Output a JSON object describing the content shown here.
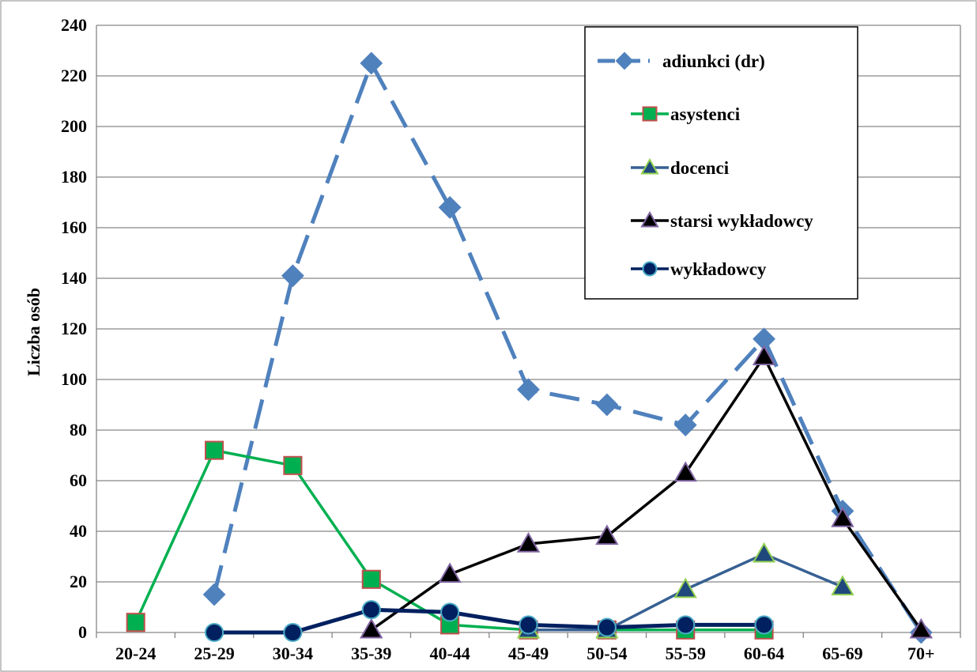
{
  "chart_data": {
    "type": "line",
    "title": "",
    "xlabel": "",
    "ylabel": "Liczba osób",
    "ylim": [
      0,
      240
    ],
    "ytick_step": 20,
    "grid": true,
    "legend_position": "top-right",
    "categories": [
      "20-24",
      "25-29",
      "30-34",
      "35-39",
      "40-44",
      "45-49",
      "50-54",
      "55-59",
      "60-64",
      "65-69",
      "70+"
    ],
    "series": [
      {
        "name": "adiunkci (dr)",
        "color": "#4f81bd",
        "dash": true,
        "marker": "diamond",
        "values": [
          null,
          15,
          141,
          225,
          168,
          96,
          90,
          82,
          116,
          48,
          0
        ]
      },
      {
        "name": "asystenci",
        "color": "#00b050",
        "dash": false,
        "marker": "square",
        "marker_fill": "#00b050",
        "marker_stroke": "#c0504d",
        "values": [
          4,
          72,
          66,
          21,
          3,
          1,
          1,
          1,
          1,
          null,
          null
        ]
      },
      {
        "name": "docenci",
        "color": "#376092",
        "dash": false,
        "marker": "triangle",
        "marker_fill": "#1f497d",
        "marker_stroke": "#92d050",
        "values": [
          null,
          null,
          null,
          null,
          null,
          1,
          1,
          17,
          31,
          18,
          null
        ]
      },
      {
        "name": "starsi wykładowcy",
        "color": "#000000",
        "dash": false,
        "marker": "triangle",
        "marker_fill": "#000000",
        "marker_stroke": "#8064a2",
        "values": [
          null,
          null,
          null,
          1,
          23,
          35,
          38,
          63,
          109,
          45,
          1
        ]
      },
      {
        "name": "wykładowcy",
        "color": "#002060",
        "dash": false,
        "marker": "circle",
        "marker_fill": "#002060",
        "marker_stroke": "#4bacc6",
        "values": [
          null,
          0,
          0,
          9,
          8,
          3,
          2,
          3,
          3,
          null,
          null
        ]
      }
    ]
  }
}
